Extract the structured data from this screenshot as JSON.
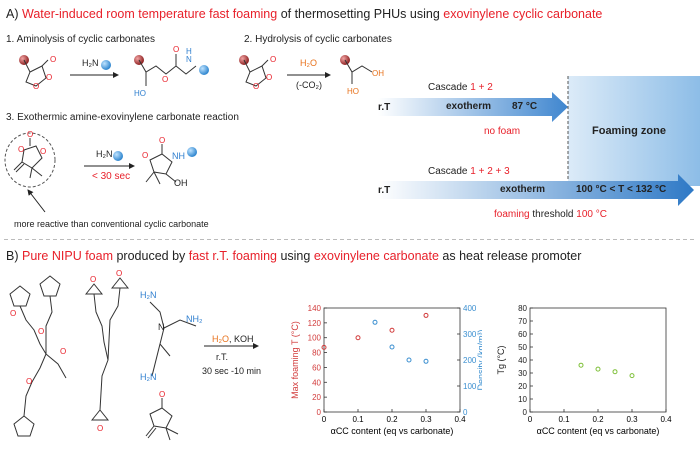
{
  "panelA": {
    "heading": {
      "prefix": "A) ",
      "w1": "Water-induced",
      "w2": " ",
      "w3": "room temperature fast foaming",
      "w4": " of thermosetting PHUs using ",
      "w5": "exovinylene cyclic carbonate"
    },
    "step1": "1. Aminolysis of cyclic carbonates",
    "step2": "2. Hydrolysis of cyclic carbonates",
    "step3": "3. Exothermic amine-exovinylene carbonate reaction",
    "h2o": "H₂O",
    "co2": "(-CO₂)",
    "h2n": "H₂N",
    "h2n2": "H₂N",
    "time": "< 30 sec",
    "note": "more reactive than conventional cyclic carbonate",
    "ho": "HO",
    "oh": "OH",
    "nh": "NH",
    "n": "N",
    "h": "H",
    "cascade1": {
      "label": "Cascade ",
      "nums": "1 + 2"
    },
    "cascade2": {
      "label": "Cascade ",
      "nums": "1 + 2 + 3"
    },
    "rt": "r.T",
    "rt2": "r.T",
    "exotherm1": "exotherm",
    "temp1": "87 °C",
    "nofoam": "no foam",
    "zone": "Foaming zone",
    "exotherm2": "exotherm",
    "range": "100 °C < T < 132 °C",
    "threshold": {
      "a": "foaming",
      "b": " threshold ",
      "c": "100 °C"
    }
  },
  "panelB": {
    "heading": {
      "prefix": "B) ",
      "w1": "Pure NIPU foam",
      "w2": " produced by ",
      "w3": "fast r.T. foaming",
      "w4": " using ",
      "w5": "exovinylene carbonate",
      "w6": " as heat release promoter"
    },
    "reagents": {
      "h2o": "H₂O",
      "koh": ", KOH",
      "rt": "r.T.",
      "time": "30 sec -10 min"
    },
    "amine": {
      "nh2a": "H₂N",
      "nh2b": "NH₂",
      "nh2c": "H₂N",
      "n": "N"
    }
  },
  "chart_data": [
    {
      "type": "scatter",
      "xlabel": "αCC content (eq vs carbonate)",
      "ylabel": "Max foaming T (°C)",
      "y2label": "Density (kg/m³)",
      "xlim": [
        0,
        0.4
      ],
      "ylim": [
        0,
        140
      ],
      "y2lim": [
        0,
        400
      ],
      "xticks": [
        "0",
        "0.1",
        "0.2",
        "0.3",
        "0.4"
      ],
      "yticks": [
        "0",
        "20",
        "40",
        "60",
        "80",
        "100",
        "120",
        "140"
      ],
      "y2ticks": [
        "0",
        "100",
        "200",
        "300",
        "400"
      ],
      "series": [
        {
          "color": "#d23b3b",
          "axis": "left",
          "x": [
            0,
            0.1,
            0.2,
            0.3
          ],
          "y": [
            87,
            100,
            110,
            130
          ]
        },
        {
          "color": "#3b8fd0",
          "axis": "right",
          "x": [
            0.15,
            0.2,
            0.25,
            0.3
          ],
          "y": [
            345,
            250,
            200,
            195
          ]
        }
      ]
    },
    {
      "type": "scatter",
      "xlabel": "αCC content (eq vs carbonate)",
      "ylabel": "Tg (°C)",
      "xlim": [
        0,
        0.4
      ],
      "ylim": [
        0,
        80
      ],
      "xticks": [
        "0",
        "0.1",
        "0.2",
        "0.3",
        "0.4"
      ],
      "yticks": [
        "0",
        "10",
        "20",
        "30",
        "40",
        "50",
        "60",
        "70",
        "80"
      ],
      "series": [
        {
          "color": "#7fc03a",
          "axis": "left",
          "x": [
            0.15,
            0.2,
            0.25,
            0.3
          ],
          "y": [
            36,
            33,
            31,
            28
          ]
        }
      ]
    }
  ],
  "colors": {
    "accent_red": "#e8202a",
    "accent_orange": "#e8721c",
    "accent_blue": "#2f7fcf",
    "zone_blue": "#9ec6ea"
  }
}
